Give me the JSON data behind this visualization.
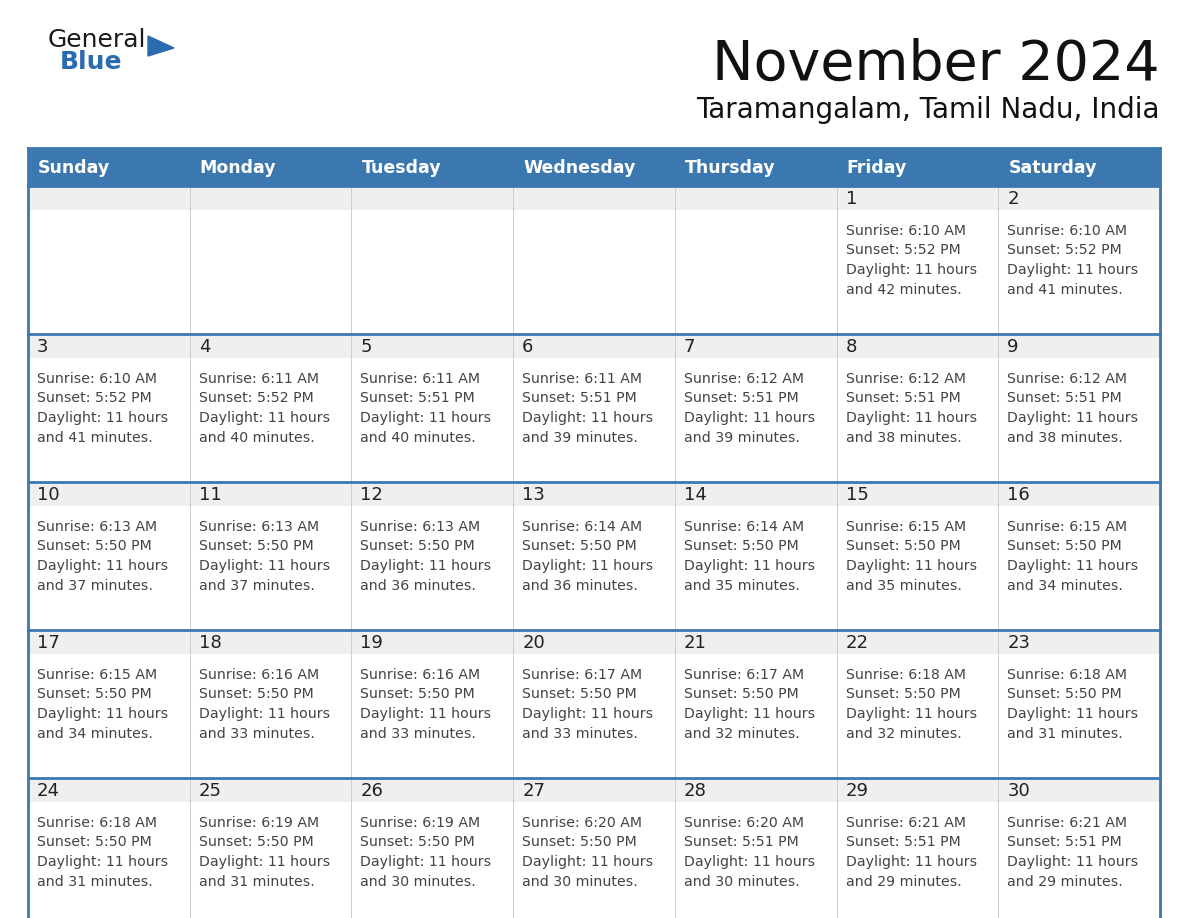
{
  "title": "November 2024",
  "subtitle": "Taramangalam, Tamil Nadu, India",
  "days_of_week": [
    "Sunday",
    "Monday",
    "Tuesday",
    "Wednesday",
    "Thursday",
    "Friday",
    "Saturday"
  ],
  "header_bg_color": "#3B78B0",
  "header_text_color": "#FFFFFF",
  "row_top_bg_color": "#EFEFEF",
  "row_body_bg_color": "#FFFFFF",
  "cell_border_color": "#3B78B0",
  "cell_light_border": "#CCCCCC",
  "day_number_color": "#222222",
  "cell_text_color": "#444444",
  "title_color": "#111111",
  "subtitle_color": "#111111",
  "logo_general_color": "#1a1a1a",
  "logo_blue_color": "#2B6CB0",
  "calendar_data": [
    [
      {
        "day": null,
        "sunrise": null,
        "sunset": null,
        "daylight_h": null,
        "daylight_m": null
      },
      {
        "day": null,
        "sunrise": null,
        "sunset": null,
        "daylight_h": null,
        "daylight_m": null
      },
      {
        "day": null,
        "sunrise": null,
        "sunset": null,
        "daylight_h": null,
        "daylight_m": null
      },
      {
        "day": null,
        "sunrise": null,
        "sunset": null,
        "daylight_h": null,
        "daylight_m": null
      },
      {
        "day": null,
        "sunrise": null,
        "sunset": null,
        "daylight_h": null,
        "daylight_m": null
      },
      {
        "day": 1,
        "sunrise": "6:10 AM",
        "sunset": "5:52 PM",
        "daylight_h": "11 hours",
        "daylight_m": "42 minutes."
      },
      {
        "day": 2,
        "sunrise": "6:10 AM",
        "sunset": "5:52 PM",
        "daylight_h": "11 hours",
        "daylight_m": "41 minutes."
      }
    ],
    [
      {
        "day": 3,
        "sunrise": "6:10 AM",
        "sunset": "5:52 PM",
        "daylight_h": "11 hours",
        "daylight_m": "41 minutes."
      },
      {
        "day": 4,
        "sunrise": "6:11 AM",
        "sunset": "5:52 PM",
        "daylight_h": "11 hours",
        "daylight_m": "40 minutes."
      },
      {
        "day": 5,
        "sunrise": "6:11 AM",
        "sunset": "5:51 PM",
        "daylight_h": "11 hours",
        "daylight_m": "40 minutes."
      },
      {
        "day": 6,
        "sunrise": "6:11 AM",
        "sunset": "5:51 PM",
        "daylight_h": "11 hours",
        "daylight_m": "39 minutes."
      },
      {
        "day": 7,
        "sunrise": "6:12 AM",
        "sunset": "5:51 PM",
        "daylight_h": "11 hours",
        "daylight_m": "39 minutes."
      },
      {
        "day": 8,
        "sunrise": "6:12 AM",
        "sunset": "5:51 PM",
        "daylight_h": "11 hours",
        "daylight_m": "38 minutes."
      },
      {
        "day": 9,
        "sunrise": "6:12 AM",
        "sunset": "5:51 PM",
        "daylight_h": "11 hours",
        "daylight_m": "38 minutes."
      }
    ],
    [
      {
        "day": 10,
        "sunrise": "6:13 AM",
        "sunset": "5:50 PM",
        "daylight_h": "11 hours",
        "daylight_m": "37 minutes."
      },
      {
        "day": 11,
        "sunrise": "6:13 AM",
        "sunset": "5:50 PM",
        "daylight_h": "11 hours",
        "daylight_m": "37 minutes."
      },
      {
        "day": 12,
        "sunrise": "6:13 AM",
        "sunset": "5:50 PM",
        "daylight_h": "11 hours",
        "daylight_m": "36 minutes."
      },
      {
        "day": 13,
        "sunrise": "6:14 AM",
        "sunset": "5:50 PM",
        "daylight_h": "11 hours",
        "daylight_m": "36 minutes."
      },
      {
        "day": 14,
        "sunrise": "6:14 AM",
        "sunset": "5:50 PM",
        "daylight_h": "11 hours",
        "daylight_m": "35 minutes."
      },
      {
        "day": 15,
        "sunrise": "6:15 AM",
        "sunset": "5:50 PM",
        "daylight_h": "11 hours",
        "daylight_m": "35 minutes."
      },
      {
        "day": 16,
        "sunrise": "6:15 AM",
        "sunset": "5:50 PM",
        "daylight_h": "11 hours",
        "daylight_m": "34 minutes."
      }
    ],
    [
      {
        "day": 17,
        "sunrise": "6:15 AM",
        "sunset": "5:50 PM",
        "daylight_h": "11 hours",
        "daylight_m": "34 minutes."
      },
      {
        "day": 18,
        "sunrise": "6:16 AM",
        "sunset": "5:50 PM",
        "daylight_h": "11 hours",
        "daylight_m": "33 minutes."
      },
      {
        "day": 19,
        "sunrise": "6:16 AM",
        "sunset": "5:50 PM",
        "daylight_h": "11 hours",
        "daylight_m": "33 minutes."
      },
      {
        "day": 20,
        "sunrise": "6:17 AM",
        "sunset": "5:50 PM",
        "daylight_h": "11 hours",
        "daylight_m": "33 minutes."
      },
      {
        "day": 21,
        "sunrise": "6:17 AM",
        "sunset": "5:50 PM",
        "daylight_h": "11 hours",
        "daylight_m": "32 minutes."
      },
      {
        "day": 22,
        "sunrise": "6:18 AM",
        "sunset": "5:50 PM",
        "daylight_h": "11 hours",
        "daylight_m": "32 minutes."
      },
      {
        "day": 23,
        "sunrise": "6:18 AM",
        "sunset": "5:50 PM",
        "daylight_h": "11 hours",
        "daylight_m": "31 minutes."
      }
    ],
    [
      {
        "day": 24,
        "sunrise": "6:18 AM",
        "sunset": "5:50 PM",
        "daylight_h": "11 hours",
        "daylight_m": "31 minutes."
      },
      {
        "day": 25,
        "sunrise": "6:19 AM",
        "sunset": "5:50 PM",
        "daylight_h": "11 hours",
        "daylight_m": "31 minutes."
      },
      {
        "day": 26,
        "sunrise": "6:19 AM",
        "sunset": "5:50 PM",
        "daylight_h": "11 hours",
        "daylight_m": "30 minutes."
      },
      {
        "day": 27,
        "sunrise": "6:20 AM",
        "sunset": "5:50 PM",
        "daylight_h": "11 hours",
        "daylight_m": "30 minutes."
      },
      {
        "day": 28,
        "sunrise": "6:20 AM",
        "sunset": "5:51 PM",
        "daylight_h": "11 hours",
        "daylight_m": "30 minutes."
      },
      {
        "day": 29,
        "sunrise": "6:21 AM",
        "sunset": "5:51 PM",
        "daylight_h": "11 hours",
        "daylight_m": "29 minutes."
      },
      {
        "day": 30,
        "sunrise": "6:21 AM",
        "sunset": "5:51 PM",
        "daylight_h": "11 hours",
        "daylight_m": "29 minutes."
      }
    ]
  ]
}
